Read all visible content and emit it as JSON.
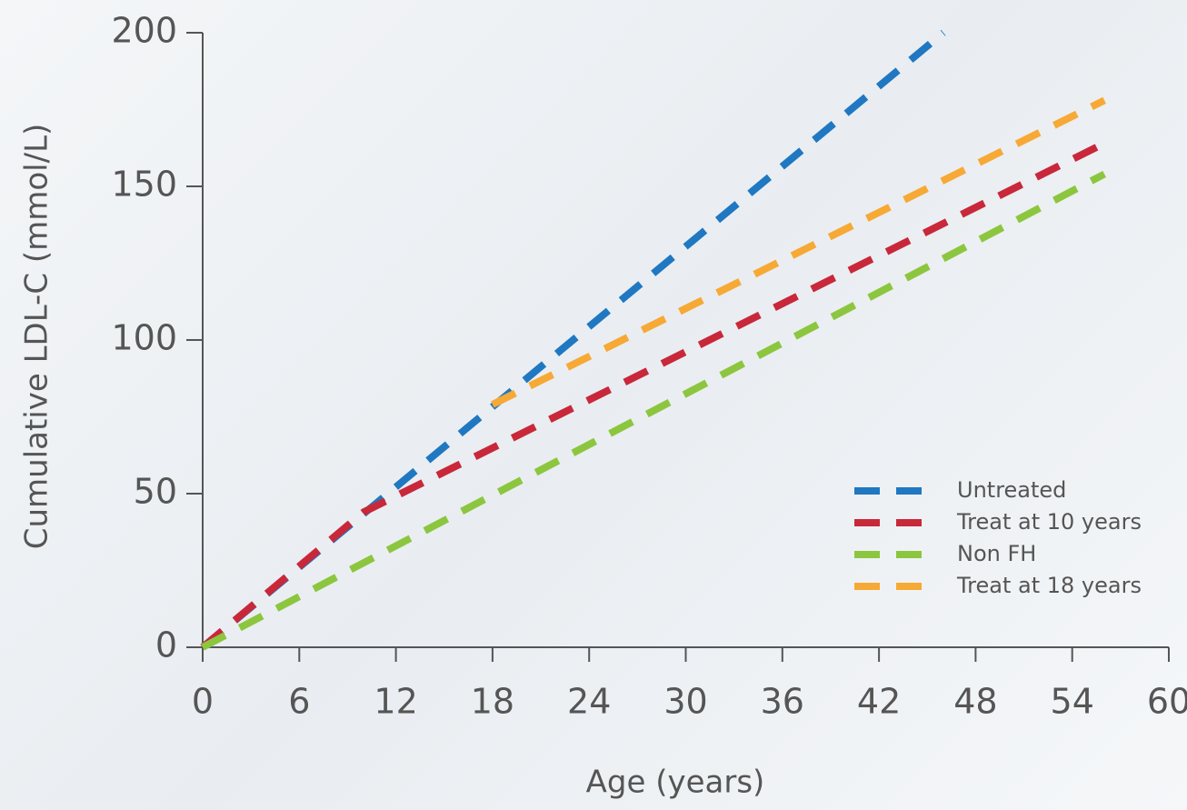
{
  "chart_data": {
    "type": "line",
    "x_label": "Age (years)",
    "y_label": "Cumulative LDL-C (mmol/L)",
    "series": [
      {
        "name": "Untreated",
        "color": "#1f78c1",
        "x": [
          0,
          46
        ],
        "values": [
          0,
          200
        ]
      },
      {
        "name": "Treat at 10 years",
        "color": "#c8283a",
        "x": [
          0,
          10,
          56
        ],
        "values": [
          0,
          44,
          164
        ]
      },
      {
        "name": "Non FH",
        "color": "#8cc63f",
        "x": [
          0,
          56
        ],
        "values": [
          0,
          154
        ]
      },
      {
        "name": "Treat at 18 years",
        "color": "#f7a935",
        "x": [
          18,
          56
        ],
        "values": [
          79,
          178
        ]
      }
    ],
    "xlim": [
      0,
      60
    ],
    "xticks": [
      0,
      6,
      12,
      18,
      24,
      30,
      36,
      42,
      48,
      54,
      60
    ],
    "ylim": [
      0,
      200
    ],
    "yticks": [
      0,
      50,
      100,
      150,
      200
    ],
    "legend": "lower right",
    "line_style": "dashed"
  }
}
